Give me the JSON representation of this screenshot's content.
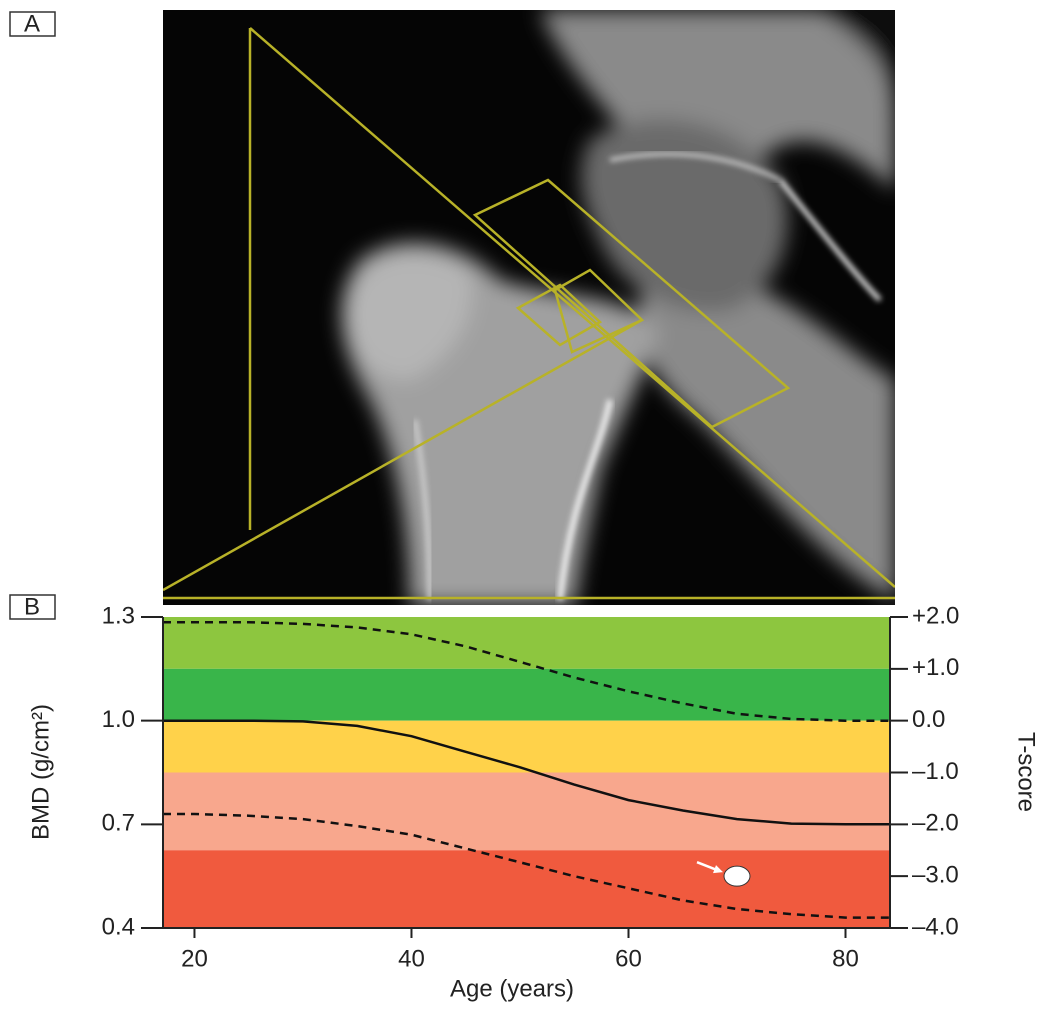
{
  "panel_labels": {
    "a": "A",
    "b": "B"
  },
  "chart_data": {
    "type": "line",
    "x_label": "Age (years)",
    "y_label": "BMD (g/cm²)",
    "y2_label": "T-score",
    "xlim": [
      17.1,
      84.1
    ],
    "xticks": [
      20,
      40,
      60,
      80
    ],
    "ylim": [
      0.4,
      1.3
    ],
    "yticks": [
      0.4,
      0.7,
      {
        "value": 1.0,
        "label": "1.0"
      },
      1.3
    ],
    "y2lim": [
      -4,
      2
    ],
    "y2ticks": [
      {
        "value": -4,
        "label": "–4.0"
      },
      {
        "value": -3,
        "label": "–3.0"
      },
      {
        "value": -2,
        "label": "–2.0"
      },
      {
        "value": -1,
        "label": "–1.0"
      },
      {
        "value": 0,
        "label": "0.0"
      },
      {
        "value": 1,
        "label": "+1.0"
      },
      {
        "value": 2,
        "label": "+2.0"
      }
    ],
    "bands": [
      {
        "from": 1,
        "to": 2,
        "color": "#8dc63f"
      },
      {
        "from": 0,
        "to": 1,
        "color": "#39b54a"
      },
      {
        "from": -1,
        "to": 0,
        "color": "#ffd24a"
      },
      {
        "from": -2.5,
        "to": -1,
        "color": "#f8a78d"
      },
      {
        "from": -4,
        "to": -2.5,
        "color": "#f05a3e"
      }
    ],
    "x": [
      17.1,
      20,
      25,
      30,
      35,
      40,
      45,
      50,
      55,
      60,
      65,
      70,
      75,
      80,
      84.1
    ],
    "series": [
      {
        "style": "solid",
        "color": "#111",
        "values": [
          1.0,
          1.0,
          1.0,
          0.998,
          0.985,
          0.955,
          0.91,
          0.865,
          0.815,
          0.77,
          0.74,
          0.715,
          0.702,
          0.7,
          0.7
        ]
      },
      {
        "style": "dashed",
        "color": "#111",
        "values": [
          1.285,
          1.285,
          1.285,
          1.28,
          1.27,
          1.25,
          1.215,
          1.17,
          1.125,
          1.085,
          1.05,
          1.02,
          1.005,
          1.0,
          1.0
        ]
      },
      {
        "style": "dashed",
        "color": "#111",
        "values": [
          0.73,
          0.73,
          0.725,
          0.715,
          0.695,
          0.67,
          0.63,
          0.59,
          0.55,
          0.515,
          0.48,
          0.455,
          0.44,
          0.43,
          0.43
        ]
      }
    ],
    "patient": {
      "x": 70.0,
      "y": 0.55,
      "color": "#ffffff"
    }
  }
}
